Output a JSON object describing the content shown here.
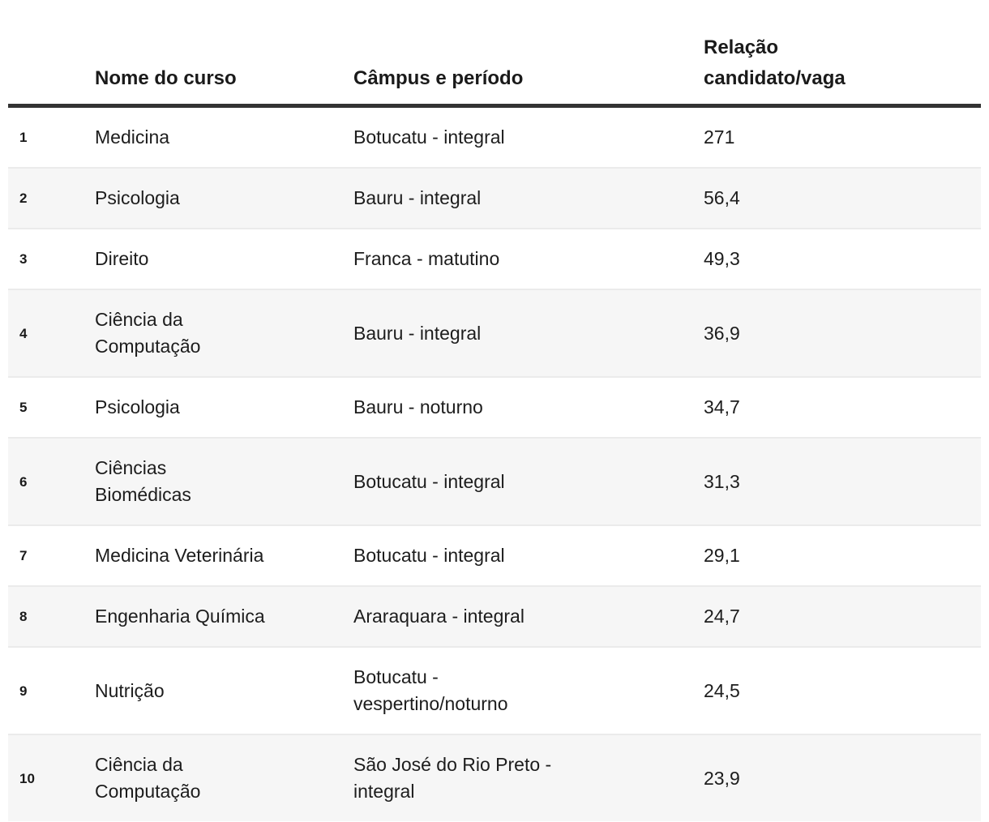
{
  "colors": {
    "background": "#ffffff",
    "text": "#1d1d1d",
    "header_text": "#1a1a1a",
    "header_rule": "#333333",
    "stripe_row": "#f6f6f6",
    "row_separator": "#ebebeb"
  },
  "table": {
    "headers": {
      "rank": "",
      "course": "Nome do curso",
      "campus": "Câmpus e período",
      "ratio": "Relação\ncandidato/vaga"
    },
    "rows": [
      {
        "rank": "1",
        "course": "Medicina",
        "campus": "Botucatu - integral",
        "ratio": "271"
      },
      {
        "rank": "2",
        "course": "Psicologia",
        "campus": "Bauru - integral",
        "ratio": "56,4"
      },
      {
        "rank": "3",
        "course": "Direito",
        "campus": "Franca - matutino",
        "ratio": "49,3"
      },
      {
        "rank": "4",
        "course": "Ciência da\nComputação",
        "campus": "Bauru - integral",
        "ratio": "36,9"
      },
      {
        "rank": "5",
        "course": "Psicologia",
        "campus": "Bauru - noturno",
        "ratio": "34,7"
      },
      {
        "rank": "6",
        "course": "Ciências\nBiomédicas",
        "campus": "Botucatu - integral",
        "ratio": "31,3"
      },
      {
        "rank": "7",
        "course": "Medicina Veterinária",
        "campus": "Botucatu - integral",
        "ratio": "29,1"
      },
      {
        "rank": "8",
        "course": "Engenharia Química",
        "campus": "Araraquara - integral",
        "ratio": "24,7"
      },
      {
        "rank": "9",
        "course": "Nutrição",
        "campus": "Botucatu -\nvespertino/noturno",
        "ratio": "24,5"
      },
      {
        "rank": "10",
        "course": "Ciência da\nComputação",
        "campus": "São José do Rio Preto -\nintegral",
        "ratio": "23,9"
      }
    ]
  },
  "chart_data": {
    "type": "table",
    "title": "",
    "columns": [
      "#",
      "Nome do curso",
      "Câmpus e período",
      "Relação candidato/vaga"
    ],
    "rows": [
      [
        1,
        "Medicina",
        "Botucatu - integral",
        271.0
      ],
      [
        2,
        "Psicologia",
        "Bauru - integral",
        56.4
      ],
      [
        3,
        "Direito",
        "Franca - matutino",
        49.3
      ],
      [
        4,
        "Ciência da Computação",
        "Bauru - integral",
        36.9
      ],
      [
        5,
        "Psicologia",
        "Bauru - noturno",
        34.7
      ],
      [
        6,
        "Ciências Biomédicas",
        "Botucatu - integral",
        31.3
      ],
      [
        7,
        "Medicina Veterinária",
        "Botucatu - integral",
        29.1
      ],
      [
        8,
        "Engenharia Química",
        "Araraquara - integral",
        24.7
      ],
      [
        9,
        "Nutrição",
        "Botucatu - vespertino/noturno",
        24.5
      ],
      [
        10,
        "Ciência da Computação",
        "São José do Rio Preto - integral",
        23.9
      ]
    ]
  }
}
